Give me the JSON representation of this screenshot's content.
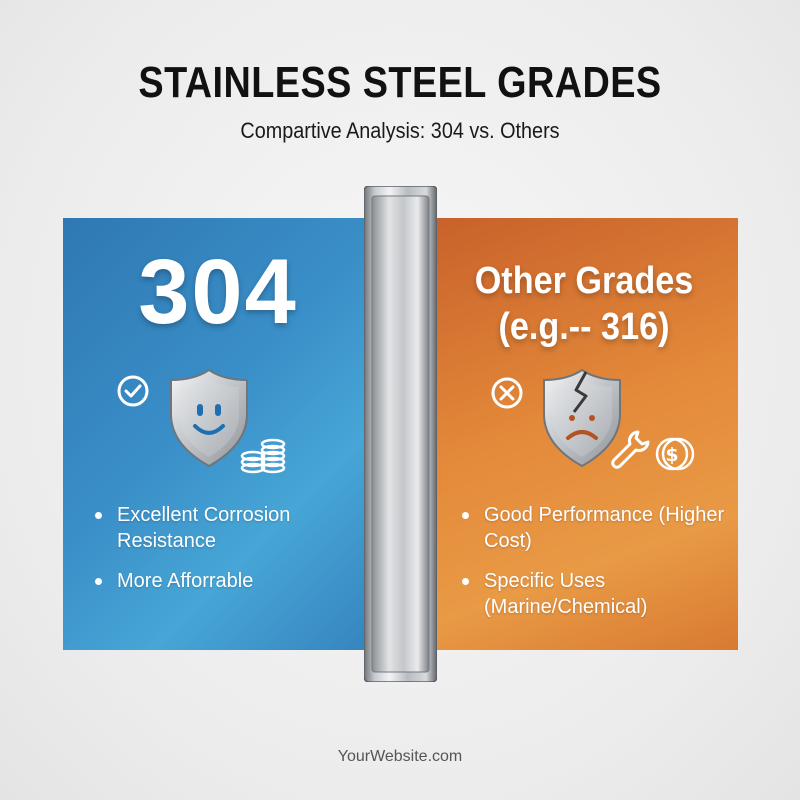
{
  "header": {
    "title": "STAINLESS STEEL GRADES",
    "subtitle": "Compartive Analysis: 304 vs. Others"
  },
  "left_panel": {
    "heading": "304",
    "status_icon": "check-circle-icon",
    "illustration": "smiling-shield-icon",
    "extra_icon": "coin-stack-icon",
    "bullets": [
      "Excellent Corrosion Resistance",
      "More Afforrable"
    ],
    "color": "#3a8fc8"
  },
  "right_panel": {
    "heading_line1": "Other Grades",
    "heading_line2": "(e.g.-- 316)",
    "status_icon": "x-circle-icon",
    "illustration": "cracked-sad-shield-icon",
    "extra_icons": [
      "wrench-icon",
      "dollar-coin-icon"
    ],
    "bullets": [
      "Good Performance (Higher Cost)",
      "Specific Uses (Marine/Chemical)"
    ],
    "color": "#e3893a"
  },
  "divider": {
    "icon": "steel-pillar-icon"
  },
  "footer": {
    "text": "YourWebsite.com"
  }
}
